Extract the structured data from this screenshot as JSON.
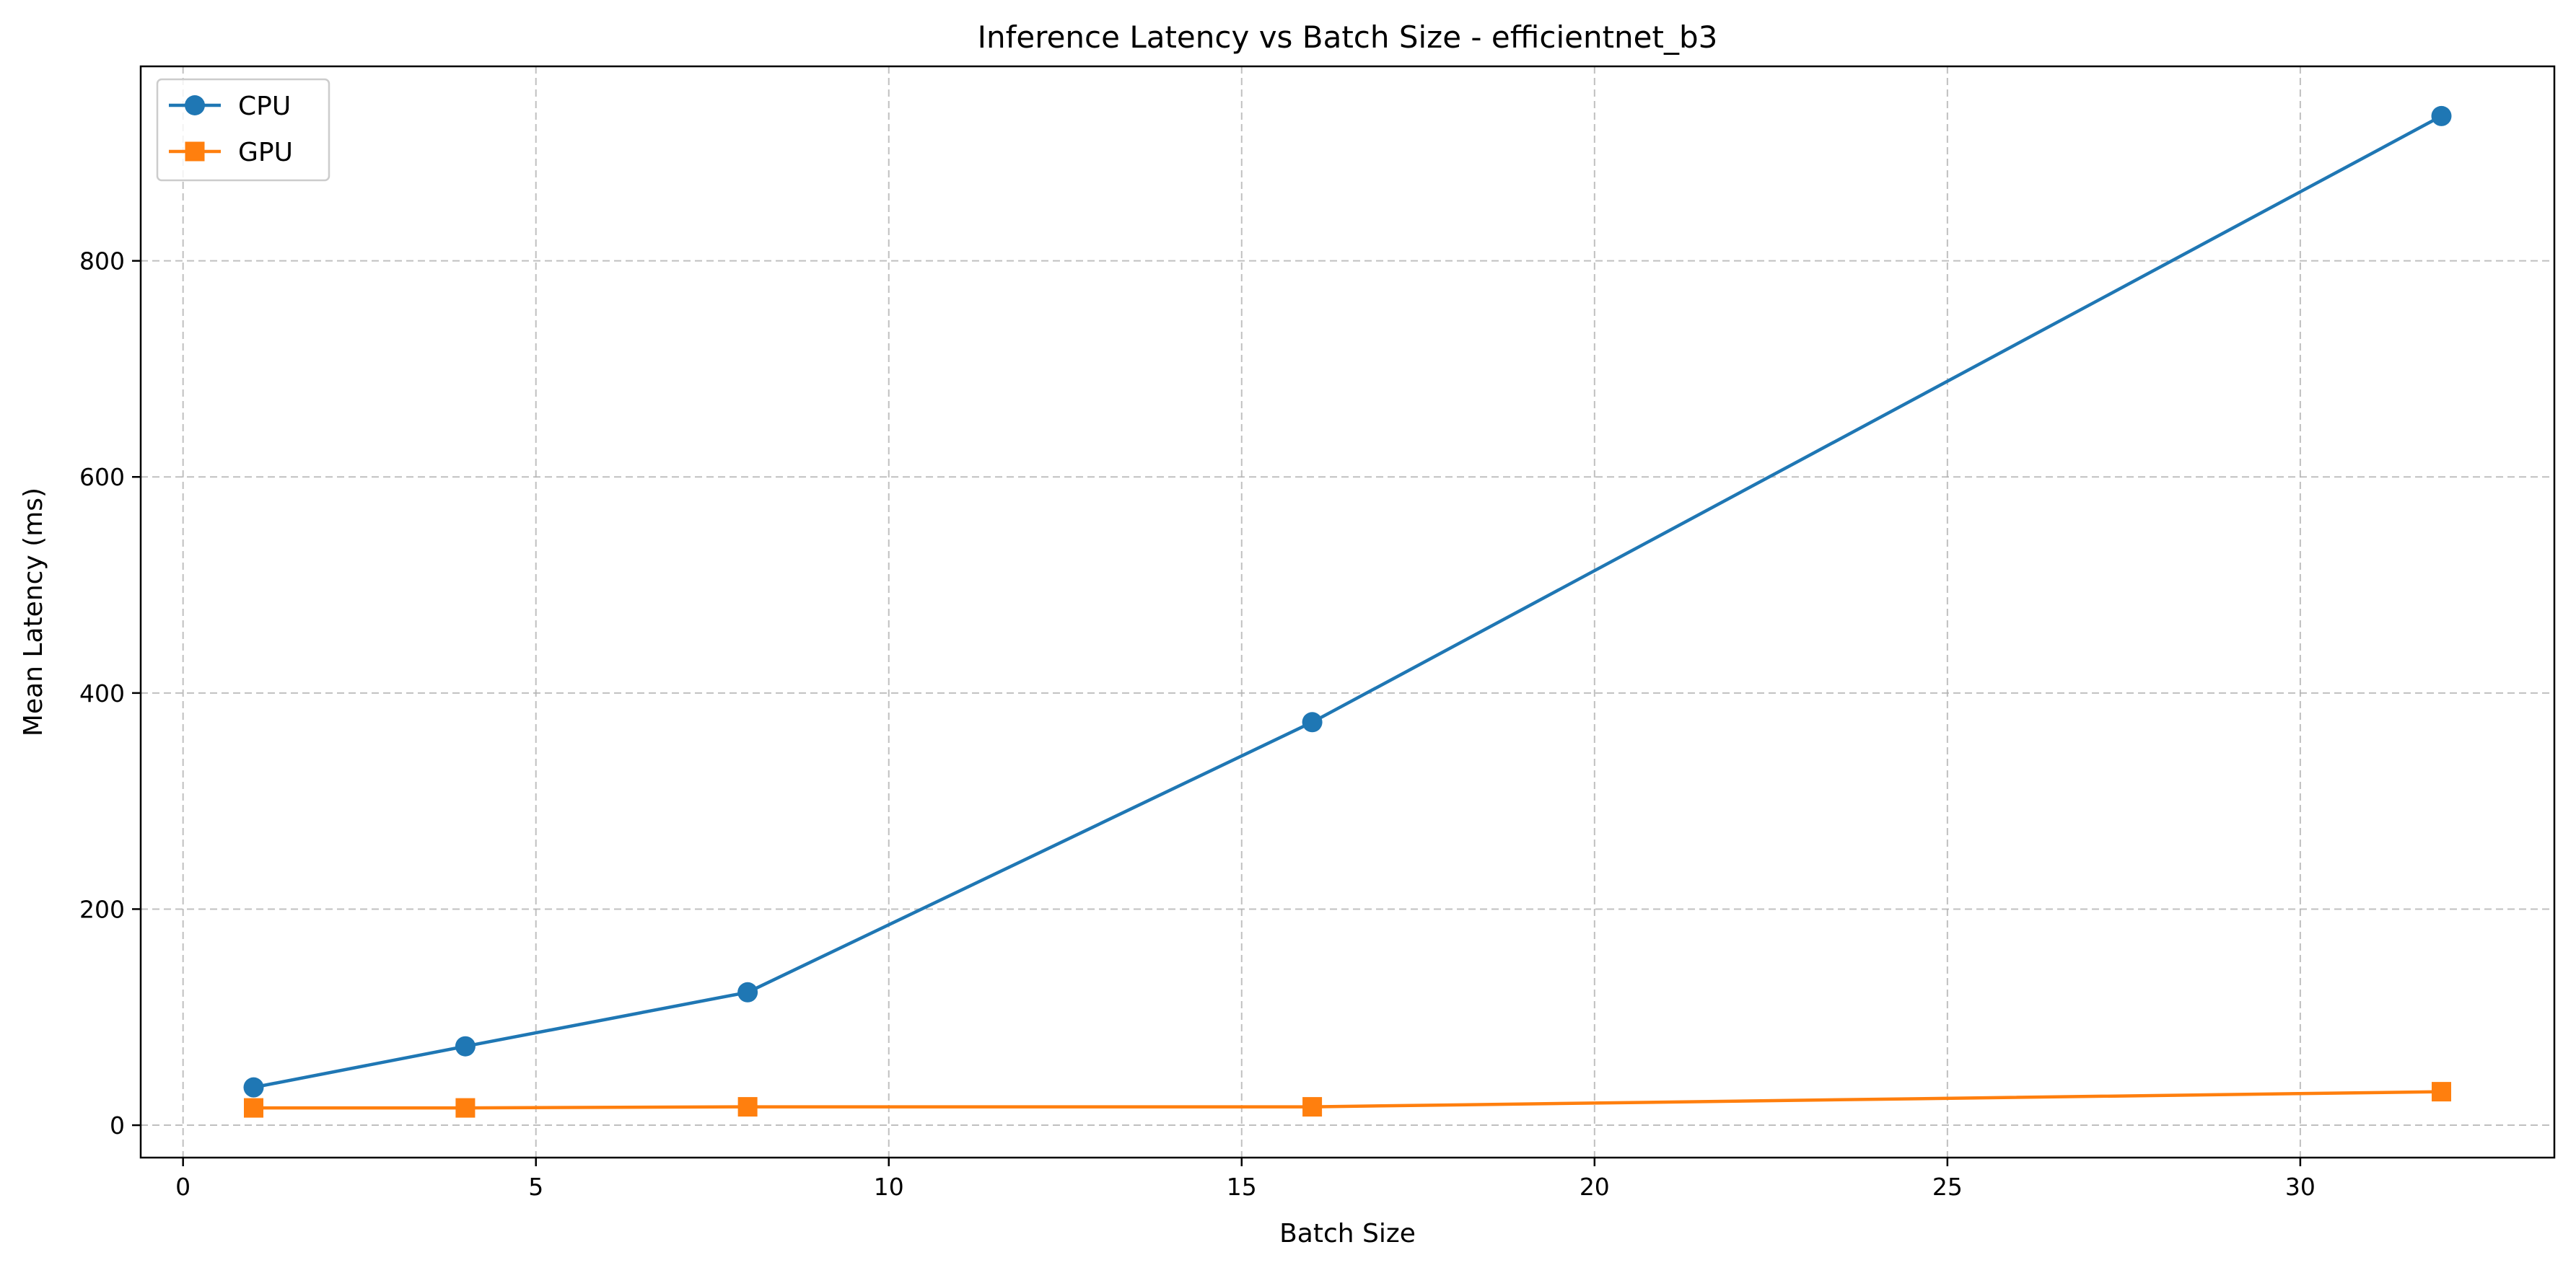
{
  "chart_data": {
    "type": "line",
    "title": "Inference Latency vs Batch Size - efficientnet_b3",
    "xlabel": "Batch Size",
    "ylabel": "Mean Latency (ms)",
    "xlim": [
      -0.6,
      33.6
    ],
    "ylim": [
      -30,
      980
    ],
    "xticks": [
      0,
      5,
      10,
      15,
      20,
      25,
      30
    ],
    "yticks": [
      0,
      200,
      400,
      600,
      800
    ],
    "grid": true,
    "legend_position": "top-left",
    "series": [
      {
        "name": "CPU",
        "color": "#1f77b4",
        "marker": "circle",
        "x": [
          1,
          4,
          8,
          16,
          32
        ],
        "y": [
          35,
          73,
          123,
          373,
          934
        ]
      },
      {
        "name": "GPU",
        "color": "#ff7f0e",
        "marker": "square",
        "x": [
          1,
          4,
          8,
          16,
          32
        ],
        "y": [
          16,
          16,
          17,
          17,
          31
        ]
      }
    ]
  }
}
